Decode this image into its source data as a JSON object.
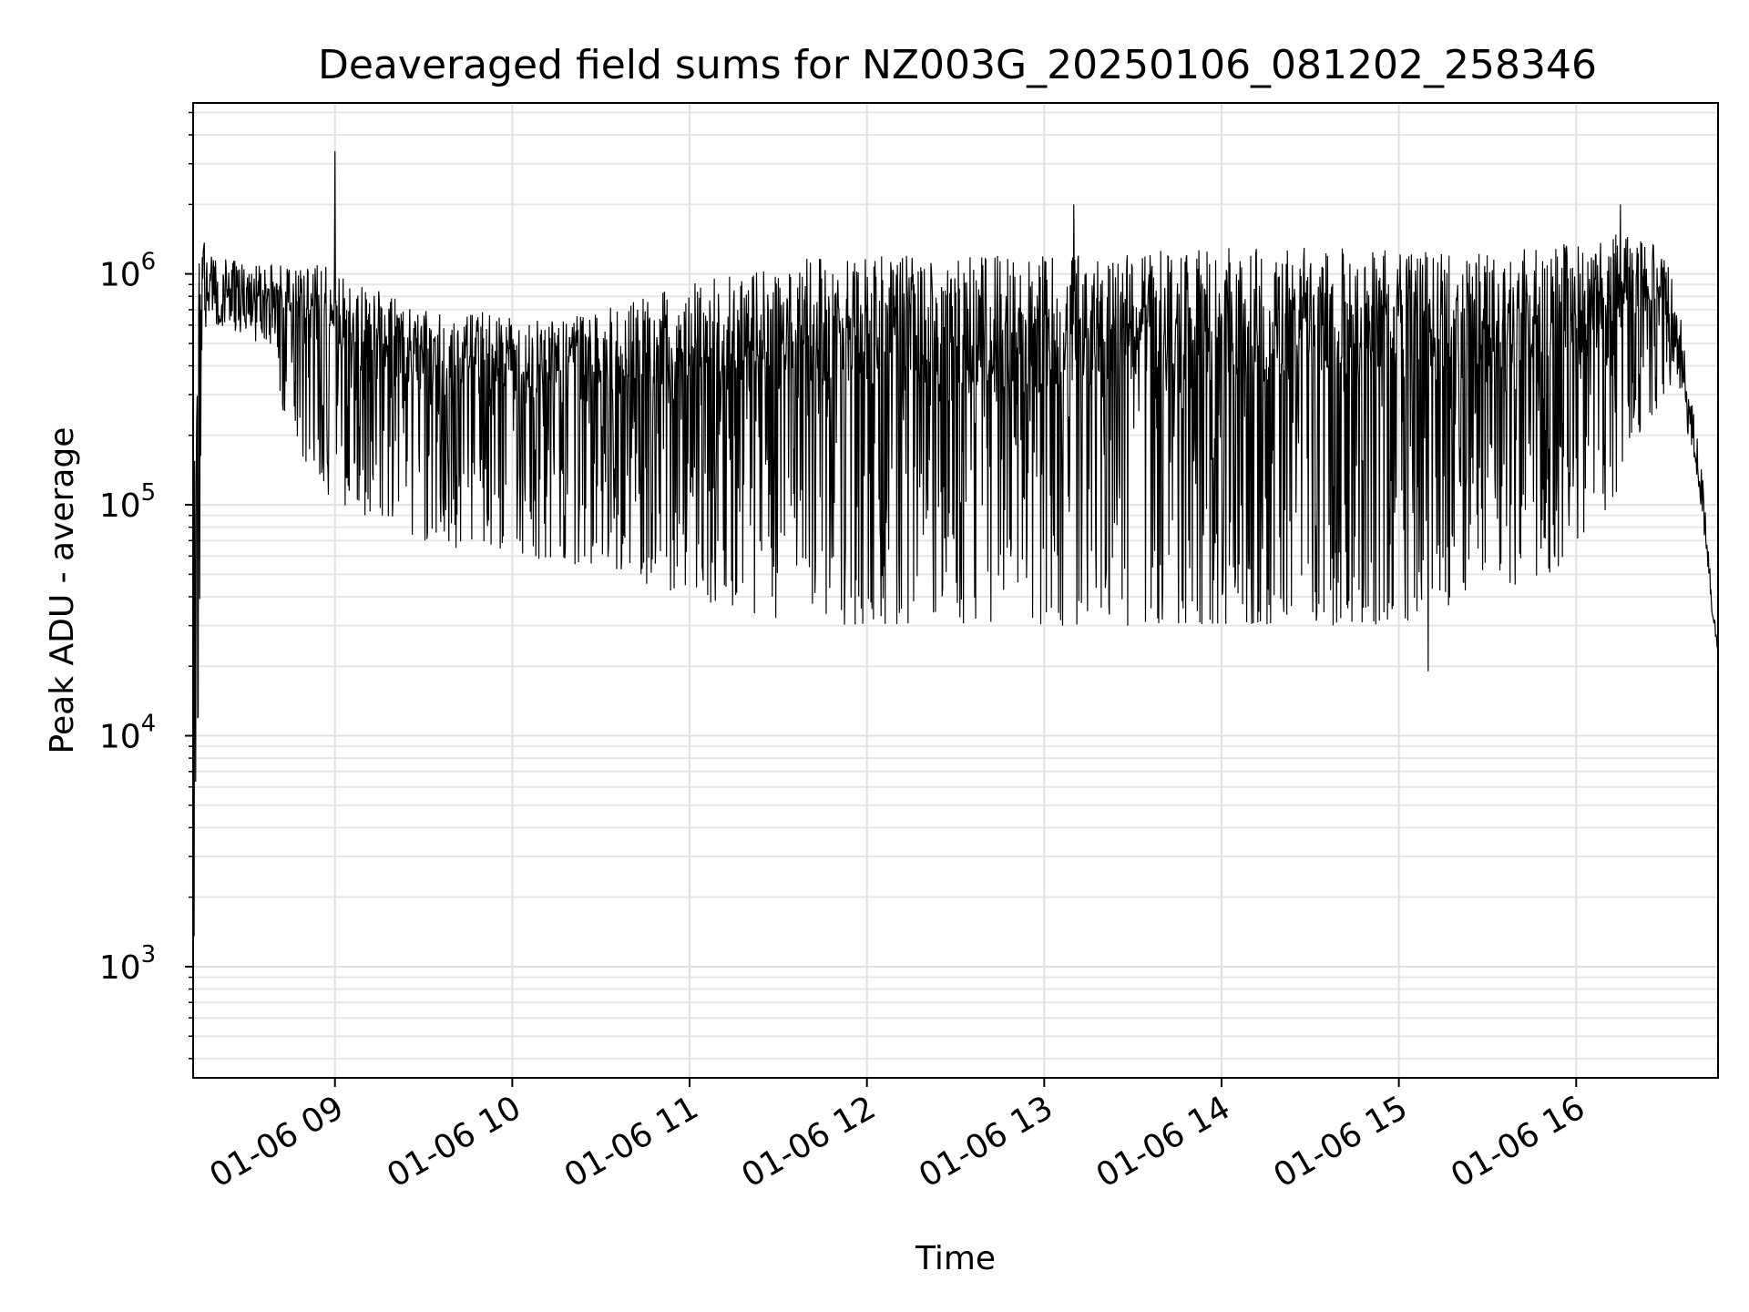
{
  "chart_data": {
    "type": "line",
    "title": "Deaveraged field sums for NZ003G_20250106_081202_258346",
    "xlabel": "Time",
    "ylabel": "Peak ADU - average",
    "yscale": "log",
    "ylim": [
      330,
      5500000
    ],
    "xlim": [
      "2025-01-06 08:12",
      "2025-01-06 16:48"
    ],
    "grid": true,
    "line_color": "#000000",
    "x_ticks": [
      {
        "label": "01-06 09",
        "time": "2025-01-06 09:00"
      },
      {
        "label": "01-06 10",
        "time": "2025-01-06 10:00"
      },
      {
        "label": "01-06 11",
        "time": "2025-01-06 11:00"
      },
      {
        "label": "01-06 12",
        "time": "2025-01-06 12:00"
      },
      {
        "label": "01-06 13",
        "time": "2025-01-06 13:00"
      },
      {
        "label": "01-06 14",
        "time": "2025-01-06 14:00"
      },
      {
        "label": "01-06 15",
        "time": "2025-01-06 15:00"
      },
      {
        "label": "01-06 16",
        "time": "2025-01-06 16:00"
      }
    ],
    "y_ticks": [
      {
        "mantissa": "10",
        "exponent": "3",
        "value": 1000
      },
      {
        "mantissa": "10",
        "exponent": "4",
        "value": 10000
      },
      {
        "mantissa": "10",
        "exponent": "5",
        "value": 100000
      },
      {
        "mantissa": "10",
        "exponent": "6",
        "value": 1000000
      }
    ],
    "series": [
      {
        "x": [
          "2025-01-06 08:12",
          "2025-01-06 08:13",
          "2025-01-06 08:14",
          "2025-01-06 08:15",
          "2025-01-06 08:20",
          "2025-01-06 08:30",
          "2025-01-06 08:40",
          "2025-01-06 08:50",
          "2025-01-06 09:00",
          "2025-01-06 09:10",
          "2025-01-06 09:20",
          "2025-01-06 09:30",
          "2025-01-06 09:40",
          "2025-01-06 09:50",
          "2025-01-06 10:00",
          "2025-01-06 10:15",
          "2025-01-06 10:30",
          "2025-01-06 10:45",
          "2025-01-06 11:00",
          "2025-01-06 11:15",
          "2025-01-06 11:30",
          "2025-01-06 11:45",
          "2025-01-06 12:00",
          "2025-01-06 12:15",
          "2025-01-06 12:30",
          "2025-01-06 12:45",
          "2025-01-06 13:00",
          "2025-01-06 13:15",
          "2025-01-06 13:30",
          "2025-01-06 13:45",
          "2025-01-06 14:00",
          "2025-01-06 14:15",
          "2025-01-06 14:30",
          "2025-01-06 14:45",
          "2025-01-06 15:00",
          "2025-01-06 15:15",
          "2025-01-06 15:30",
          "2025-01-06 15:45",
          "2025-01-06 16:00",
          "2025-01-06 16:15",
          "2025-01-06 16:30",
          "2025-01-06 16:35",
          "2025-01-06 16:38",
          "2025-01-06 16:41",
          "2025-01-06 16:44",
          "2025-01-06 16:46",
          "2025-01-06 16:48"
        ],
        "low": [
          500,
          5000,
          15000,
          400000,
          450000,
          400000,
          300000,
          150000,
          100000,
          90000,
          80000,
          70000,
          65000,
          65000,
          60000,
          55000,
          50000,
          45000,
          40000,
          35000,
          30000,
          30000,
          30000,
          30000,
          30000,
          30000,
          30000,
          30000,
          30000,
          30000,
          30000,
          30000,
          30000,
          30000,
          30000,
          35000,
          40000,
          45000,
          60000,
          120000,
          300000,
          200000,
          150000,
          100000,
          50000,
          30000,
          21000
        ],
        "high": [
          150000,
          400000,
          1300000,
          1400000,
          1200000,
          1100000,
          1100000,
          1100000,
          1100000,
          900000,
          800000,
          700000,
          650000,
          700000,
          650000,
          650000,
          700000,
          800000,
          900000,
          1000000,
          1100000,
          1200000,
          1200000,
          1200000,
          1200000,
          1200000,
          1200000,
          1200000,
          1300000,
          1300000,
          1300000,
          1300000,
          1300000,
          1300000,
          1300000,
          1300000,
          1300000,
          1300000,
          1400000,
          1500000,
          1300000,
          700000,
          350000,
          200000,
          100000,
          40000,
          25000
        ]
      }
    ],
    "peaks": [
      {
        "time": "2025-01-06 09:00",
        "value": 3400000
      },
      {
        "time": "2025-01-06 16:15",
        "value": 2000000
      },
      {
        "time": "2025-01-06 13:10",
        "value": 2000000
      },
      {
        "time": "2025-01-06 15:10",
        "value": 19000
      }
    ]
  }
}
